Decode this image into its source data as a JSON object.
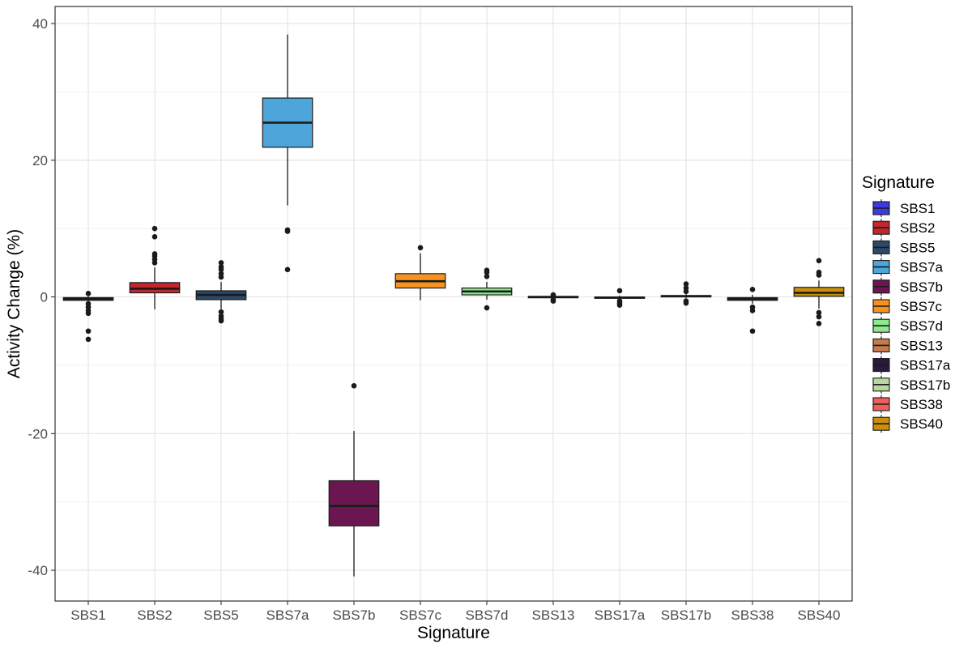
{
  "chart_data": {
    "type": "boxplot",
    "xlabel": "Signature",
    "ylabel": "Activity Change (%)",
    "ylim": [
      -44.5,
      42.5
    ],
    "yticks": [
      -40,
      -20,
      0,
      20,
      40
    ],
    "grid": true,
    "legend": {
      "title": "Signature",
      "placement": "right"
    },
    "categories": [
      "SBS1",
      "SBS2",
      "SBS5",
      "SBS7a",
      "SBS7b",
      "SBS7c",
      "SBS7d",
      "SBS13",
      "SBS17a",
      "SBS17b",
      "SBS38",
      "SBS40"
    ],
    "series": [
      {
        "name": "SBS1",
        "color": "#3b3bdf",
        "whisker_low": -0.7,
        "q1": -0.5,
        "median": -0.3,
        "q3": -0.1,
        "whisker_high": 0.1,
        "outliers": [
          0.5,
          -1.0,
          -1.5,
          -2.0,
          -2.4,
          -5.0,
          -6.2
        ]
      },
      {
        "name": "SBS2",
        "color": "#c1272d",
        "whisker_low": -1.8,
        "q1": 0.6,
        "median": 1.2,
        "q3": 2.1,
        "whisker_high": 4.3,
        "outliers": [
          5.0,
          5.5,
          6.0,
          6.3,
          8.8,
          10.0
        ]
      },
      {
        "name": "SBS5",
        "color": "#2c4968",
        "whisker_low": -1.8,
        "q1": -0.4,
        "median": 0.3,
        "q3": 0.9,
        "whisker_high": 2.2,
        "outliers": [
          2.9,
          3.4,
          4.0,
          4.4,
          5.0,
          -2.2,
          -2.8,
          -3.2,
          -3.5
        ]
      },
      {
        "name": "SBS7a",
        "color": "#4ea5d9",
        "whisker_low": 13.4,
        "q1": 21.9,
        "median": 25.5,
        "q3": 29.1,
        "whisker_high": 38.4,
        "outliers": [
          9.8,
          9.6,
          4.0
        ]
      },
      {
        "name": "SBS7b",
        "color": "#6b1650",
        "whisker_low": -40.9,
        "q1": -33.5,
        "median": -30.6,
        "q3": -26.9,
        "whisker_high": -19.6,
        "outliers": [
          -13.0
        ]
      },
      {
        "name": "SBS7c",
        "color": "#f6931e",
        "whisker_low": -0.5,
        "q1": 1.3,
        "median": 2.3,
        "q3": 3.4,
        "whisker_high": 6.4,
        "outliers": [
          7.2
        ]
      },
      {
        "name": "SBS7d",
        "color": "#8ee88c",
        "whisker_low": -0.4,
        "q1": 0.3,
        "median": 0.8,
        "q3": 1.3,
        "whisker_high": 2.2,
        "outliers": [
          3.0,
          3.6,
          3.9,
          -1.6
        ]
      },
      {
        "name": "SBS13",
        "color": "#c47c4e",
        "whisker_low": -0.2,
        "q1": -0.05,
        "median": 0.0,
        "q3": 0.05,
        "whisker_high": 0.2,
        "outliers": [
          0.3,
          -0.4,
          -0.6
        ]
      },
      {
        "name": "SBS17a",
        "color": "#2a1a3e",
        "whisker_low": -0.4,
        "q1": -0.2,
        "median": -0.1,
        "q3": 0.0,
        "whisker_high": 0.2,
        "outliers": [
          0.9,
          -0.6,
          -0.9,
          -1.2
        ]
      },
      {
        "name": "SBS17b",
        "color": "#b6d8a0",
        "whisker_low": -0.2,
        "q1": 0.0,
        "median": 0.1,
        "q3": 0.2,
        "whisker_high": 0.4,
        "outliers": [
          0.8,
          1.3,
          1.9,
          -0.6,
          -0.9
        ]
      },
      {
        "name": "SBS38",
        "color": "#ee5f5a",
        "whisker_low": -1.0,
        "q1": -0.5,
        "median": -0.3,
        "q3": -0.1,
        "whisker_high": 0.3,
        "outliers": [
          1.1,
          -1.5,
          -2.0,
          -5.0
        ]
      },
      {
        "name": "SBS40",
        "color": "#c8900c",
        "whisker_low": -1.7,
        "q1": 0.1,
        "median": 0.6,
        "q3": 1.4,
        "whisker_high": 2.4,
        "outliers": [
          3.2,
          3.6,
          5.3,
          -2.3,
          -2.9,
          -3.9
        ]
      }
    ]
  }
}
